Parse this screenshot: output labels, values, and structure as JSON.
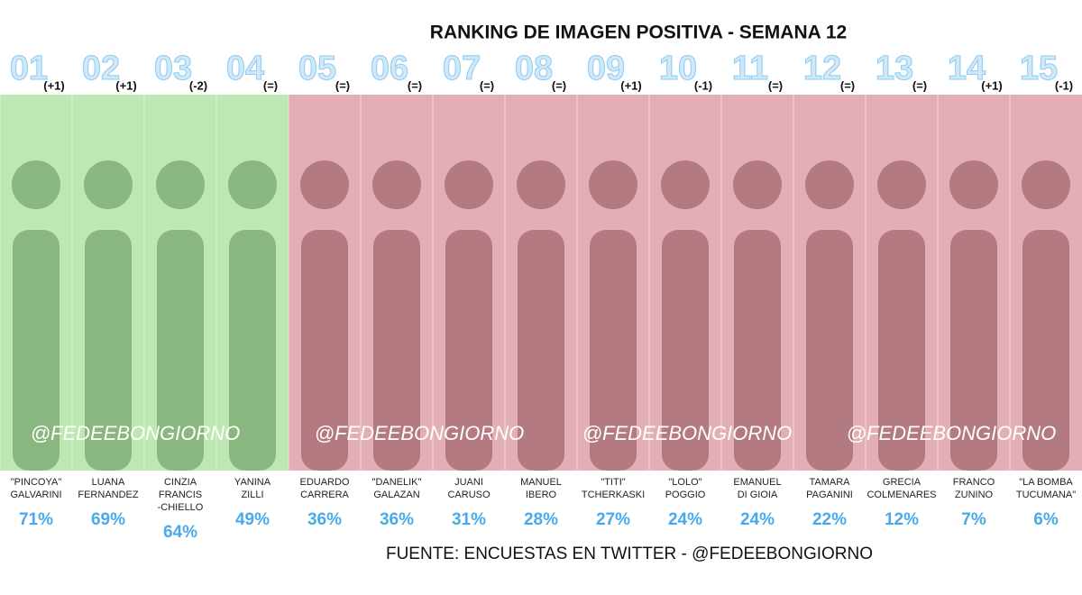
{
  "title": "RANKING DE IMAGEN POSITIVA - SEMANA 12",
  "contestants": [
    {
      "rank": "01",
      "change": "(+1)",
      "name": [
        "\"PINCOYA\"",
        "GALVARINI"
      ],
      "percent": "71%"
    },
    {
      "rank": "02",
      "change": "(+1)",
      "name": [
        "LUANA",
        "FERNANDEZ"
      ],
      "percent": "69%"
    },
    {
      "rank": "03",
      "change": "(-2)",
      "name": [
        "CINZIA",
        "FRANCIS",
        "-CHIELLO"
      ],
      "percent": "64%"
    },
    {
      "rank": "04",
      "change": "(=)",
      "name": [
        "YANINA",
        "ZILLI"
      ],
      "percent": "49%"
    },
    {
      "rank": "05",
      "change": "(=)",
      "name": [
        "EDUARDO",
        "CARRERA"
      ],
      "percent": "36%"
    },
    {
      "rank": "06",
      "change": "(=)",
      "name": [
        "\"DANELIK\"",
        "GALAZAN"
      ],
      "percent": "36%"
    },
    {
      "rank": "07",
      "change": "(=)",
      "name": [
        "JUANI",
        "CARUSO"
      ],
      "percent": "31%"
    },
    {
      "rank": "08",
      "change": "(=)",
      "name": [
        "MANUEL",
        "IBERO"
      ],
      "percent": "28%"
    },
    {
      "rank": "09",
      "change": "(+1)",
      "name": [
        "\"TITI\"",
        "TCHERKASKI"
      ],
      "percent": "27%"
    },
    {
      "rank": "10",
      "change": "(-1)",
      "name": [
        "\"LOLO\"",
        "POGGIO"
      ],
      "percent": "24%"
    },
    {
      "rank": "11",
      "change": "(=)",
      "name": [
        "EMANUEL",
        "DI GIOIA"
      ],
      "percent": "24%"
    },
    {
      "rank": "12",
      "change": "(=)",
      "name": [
        "TAMARA",
        "PAGANINI"
      ],
      "percent": "22%"
    },
    {
      "rank": "13",
      "change": "(=)",
      "name": [
        "GRECIA",
        "COLMENARES"
      ],
      "percent": "12%"
    },
    {
      "rank": "14",
      "change": "(+1)",
      "name": [
        "FRANCO",
        "ZUNINO"
      ],
      "percent": "7%"
    },
    {
      "rank": "15",
      "change": "(-1)",
      "name": [
        "\"LA BOMBA",
        "TUCUMANA\""
      ],
      "percent": "6%"
    }
  ],
  "watermarks": [
    "@FEDEEBONGIORNO",
    "@FEDEEBONGIORNO",
    "@FEDEEBONGIORNO",
    "@FEDEEBONGIORNO"
  ],
  "source": "FUENTE: ENCUESTAS EN TWITTER - @FEDEEBONGIORNO"
}
